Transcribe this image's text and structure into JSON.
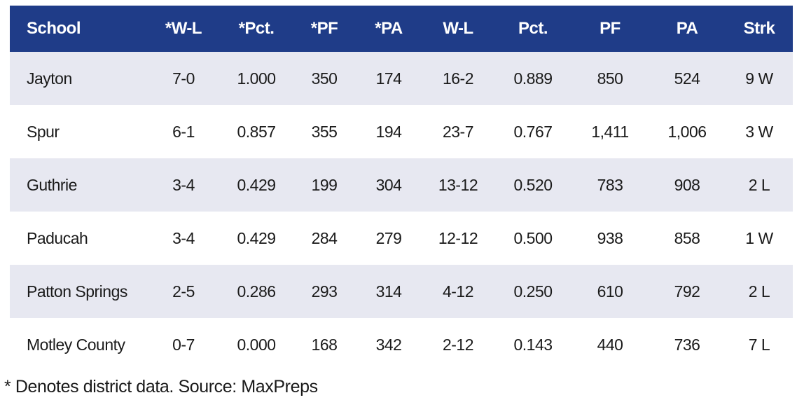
{
  "colors": {
    "header_bg": "#1f3c88",
    "header_text": "#ffffff",
    "row_shaded": "#e7e8f1",
    "row_plain": "#ffffff"
  },
  "table": {
    "headers": [
      "School",
      "*W-L",
      "*Pct.",
      "*PF",
      "*PA",
      "W-L",
      "Pct.",
      "PF",
      "PA",
      "Strk"
    ],
    "rows": [
      [
        "Jayton",
        "7-0",
        "1.000",
        "350",
        "174",
        "16-2",
        "0.889",
        "850",
        "524",
        "9 W"
      ],
      [
        "Spur",
        "6-1",
        "0.857",
        "355",
        "194",
        "23-7",
        "0.767",
        "1,411",
        "1,006",
        "3 W"
      ],
      [
        "Guthrie",
        "3-4",
        "0.429",
        "199",
        "304",
        "13-12",
        "0.520",
        "783",
        "908",
        "2 L"
      ],
      [
        "Paducah",
        "3-4",
        "0.429",
        "284",
        "279",
        "12-12",
        "0.500",
        "938",
        "858",
        "1 W"
      ],
      [
        "Patton Springs",
        "2-5",
        "0.286",
        "293",
        "314",
        "4-12",
        "0.250",
        "610",
        "792",
        "2 L"
      ],
      [
        "Motley County",
        "0-7",
        "0.000",
        "168",
        "342",
        "2-12",
        "0.143",
        "440",
        "736",
        "7 L"
      ]
    ]
  },
  "footnote": "* Denotes district data. Source: MaxPreps"
}
